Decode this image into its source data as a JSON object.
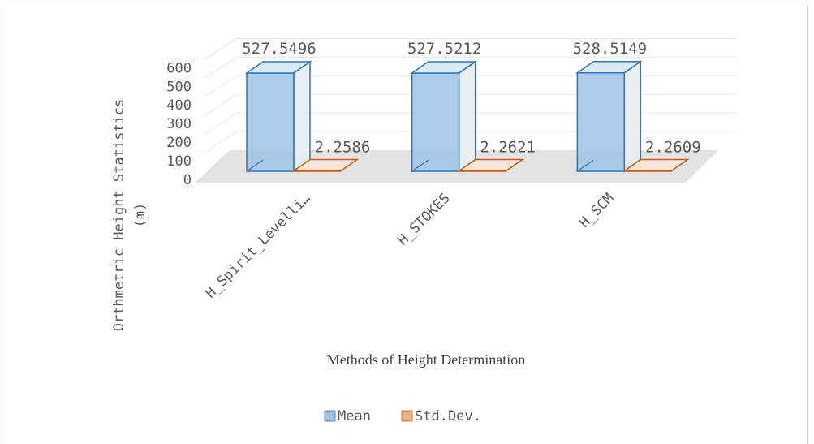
{
  "chart_data": {
    "type": "bar",
    "title": "",
    "xlabel": "Methods of Height Determination",
    "ylabel": "Orthmetric Height Statistics (m)",
    "ylabel_lines": [
      "Orthmetric Height Statistics",
      "(m)"
    ],
    "categories": [
      "H_Spirit_Levelli…",
      "H_STOKES",
      "H_SCM"
    ],
    "series": [
      {
        "name": "Mean",
        "values": [
          527.5496,
          527.5212,
          528.5149
        ],
        "labels": [
          "527.5496",
          "527.5212",
          "528.5149"
        ],
        "color": "#9dc3e6",
        "edge": "#2e75b6"
      },
      {
        "name": "Std.Dev.",
        "values": [
          2.2586,
          2.2621,
          2.2609
        ],
        "labels": [
          "2.2586",
          "2.2621",
          "2.2609"
        ],
        "color": "#f4b183",
        "edge": "#c55a11"
      }
    ],
    "ylim": [
      0,
      600
    ],
    "yticks": [
      0,
      100,
      200,
      300,
      400,
      500,
      600
    ],
    "grid": true,
    "legend_position": "bottom",
    "style": "3d-clustered-column"
  }
}
